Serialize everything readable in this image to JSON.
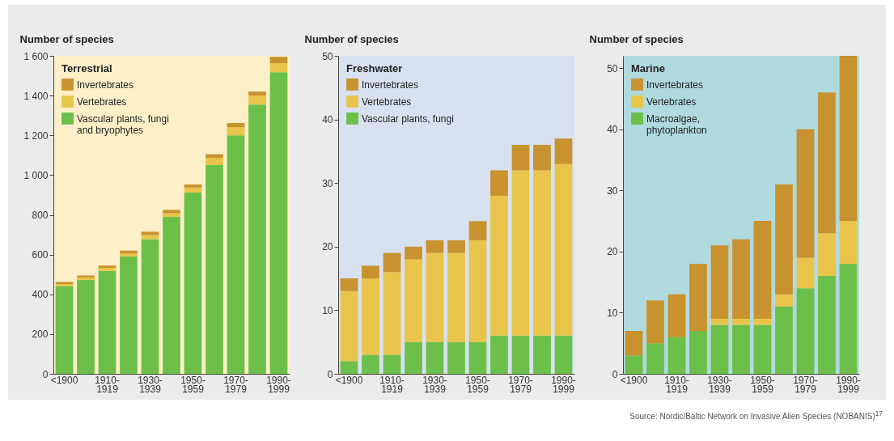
{
  "chart_data": [
    {
      "type": "bar",
      "stacked": true,
      "ylabel": "Number of species",
      "legend_title": "Terrestrial",
      "legend": "top left",
      "grid": false,
      "categories": [
        "<1900",
        null,
        "1910-1919",
        null,
        "1930-1939",
        null,
        "1950-1959",
        null,
        "1970-1979",
        null,
        "1990-1999"
      ],
      "series": [
        {
          "name": "Vascular plants, fungi and bryophytes",
          "color": "#6cc04a",
          "values": [
            440,
            472,
            518,
            590,
            678,
            790,
            912,
            1052,
            1200,
            1355,
            1518
          ]
        },
        {
          "name": "Vertebrates",
          "color": "#e8c44a",
          "values": [
            12,
            13,
            15,
            15,
            20,
            18,
            25,
            35,
            40,
            45,
            45
          ]
        },
        {
          "name": "Invertebrates",
          "color": "#c8922e",
          "values": [
            10,
            10,
            12,
            15,
            17,
            17,
            16,
            18,
            22,
            20,
            32
          ]
        }
      ],
      "ylim": [
        0,
        1600
      ],
      "yticks": [
        0,
        200,
        400,
        600,
        800,
        {
          "value": 1000,
          "label": "1 000"
        },
        {
          "value": 1200,
          "label": "1 200"
        },
        {
          "value": 1400,
          "label": "1 400"
        },
        {
          "value": 1600,
          "label": "1 600"
        }
      ]
    },
    {
      "type": "bar",
      "stacked": true,
      "ylabel": "Number of species",
      "legend_title": "Freshwater",
      "legend": "top left",
      "grid": false,
      "categories": [
        "<1900",
        null,
        "1910-1919",
        null,
        "1930-1939",
        null,
        "1950-1959",
        null,
        "1970-1979",
        null,
        "1990-1999"
      ],
      "series": [
        {
          "name": "Vascular plants, fungi",
          "color": "#6cc04a",
          "values": [
            2,
            3,
            3,
            5,
            5,
            5,
            5,
            6,
            6,
            6,
            6
          ]
        },
        {
          "name": "Vertebrates",
          "color": "#e8c44a",
          "values": [
            11,
            12,
            13,
            13,
            14,
            14,
            16,
            22,
            26,
            26,
            27
          ]
        },
        {
          "name": "Invertebrates",
          "color": "#c8922e",
          "values": [
            2,
            2,
            3,
            2,
            2,
            2,
            3,
            4,
            4,
            4,
            4
          ]
        }
      ],
      "ylim": [
        0,
        50
      ],
      "yticks": [
        0,
        10,
        20,
        30,
        40,
        50
      ]
    },
    {
      "type": "bar",
      "stacked": true,
      "ylabel": "Number of species",
      "legend_title": "Marine",
      "legend": "top left",
      "grid": false,
      "categories": [
        "<1900",
        null,
        "1910-1919",
        null,
        "1930-1939",
        null,
        "1950-1959",
        null,
        "1970-1979",
        null,
        "1990-1999"
      ],
      "series": [
        {
          "name": "Macroalgae, phytoplankton",
          "color": "#6cc04a",
          "values": [
            3,
            5,
            6,
            7,
            8,
            8,
            8,
            11,
            14,
            16,
            18
          ]
        },
        {
          "name": "Vertebrates",
          "color": "#e8c44a",
          "values": [
            0,
            0,
            0,
            0,
            1,
            1,
            1,
            2,
            5,
            7,
            7
          ]
        },
        {
          "name": "Invertebrates",
          "color": "#c8922e",
          "values": [
            4,
            7,
            7,
            11,
            12,
            13,
            16,
            18,
            21,
            23,
            27
          ]
        }
      ],
      "ylim": [
        0,
        52
      ],
      "yticks": [
        0,
        10,
        20,
        30,
        40,
        50
      ],
      "annotations": [
        "Source: Nordic/Baltic Network on Invasive Alien Species (NOBANIS)$^{17}$"
      ]
    }
  ]
}
